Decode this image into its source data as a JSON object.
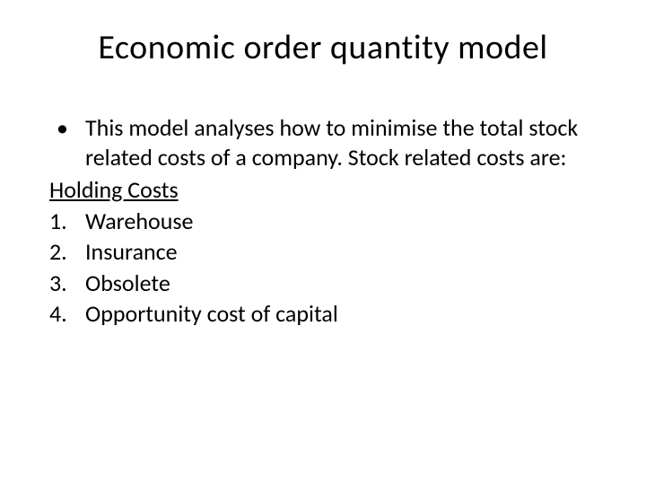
{
  "slide": {
    "title": "Economic order quantity model",
    "bullet_text": "This model analyses how to minimise the total stock related costs of a company. Stock related costs are:",
    "subtitle": "Holding Costs",
    "items": [
      {
        "num": "1.",
        "text": "Warehouse"
      },
      {
        "num": "2.",
        "text": "Insurance"
      },
      {
        "num": "3.",
        "text": "Obsolete"
      },
      {
        "num": "4.",
        "text": "Opportunity cost of capital"
      }
    ],
    "colors": {
      "background": "#ffffff",
      "text": "#000000"
    },
    "typography": {
      "title_fontsize": 38,
      "body_fontsize": 26,
      "font_family": "Calibri"
    }
  }
}
